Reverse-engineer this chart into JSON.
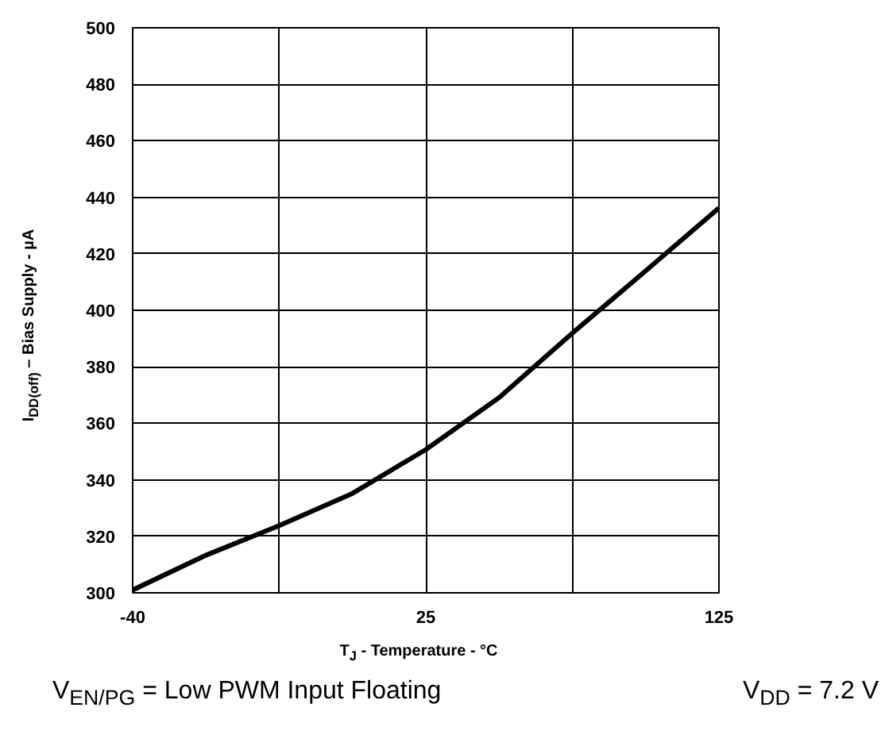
{
  "chart_data": {
    "type": "line",
    "categories": [
      "-40",
      null,
      null,
      null,
      "25",
      null,
      null,
      null,
      "125"
    ],
    "values": [
      301,
      313.3,
      323.8,
      335.2,
      350.7,
      369.1,
      391.9,
      414,
      436.2
    ],
    "color": "#000000",
    "ylim": [
      300,
      500
    ],
    "yticks": [
      300,
      320,
      340,
      360,
      380,
      400,
      420,
      440,
      460,
      480,
      500
    ],
    "grid": true,
    "marker": "none",
    "line_style": "solid",
    "xlabel": "T$_{J}$ - Temperature - °C",
    "ylabel": "I$_{DD(off)}$ – Bias Supply - µA",
    "annotations": [
      "V$_{EN/PG}$ = Low  PWM Input Floating",
      "V$_{DD}$ = 7.2 V"
    ]
  }
}
